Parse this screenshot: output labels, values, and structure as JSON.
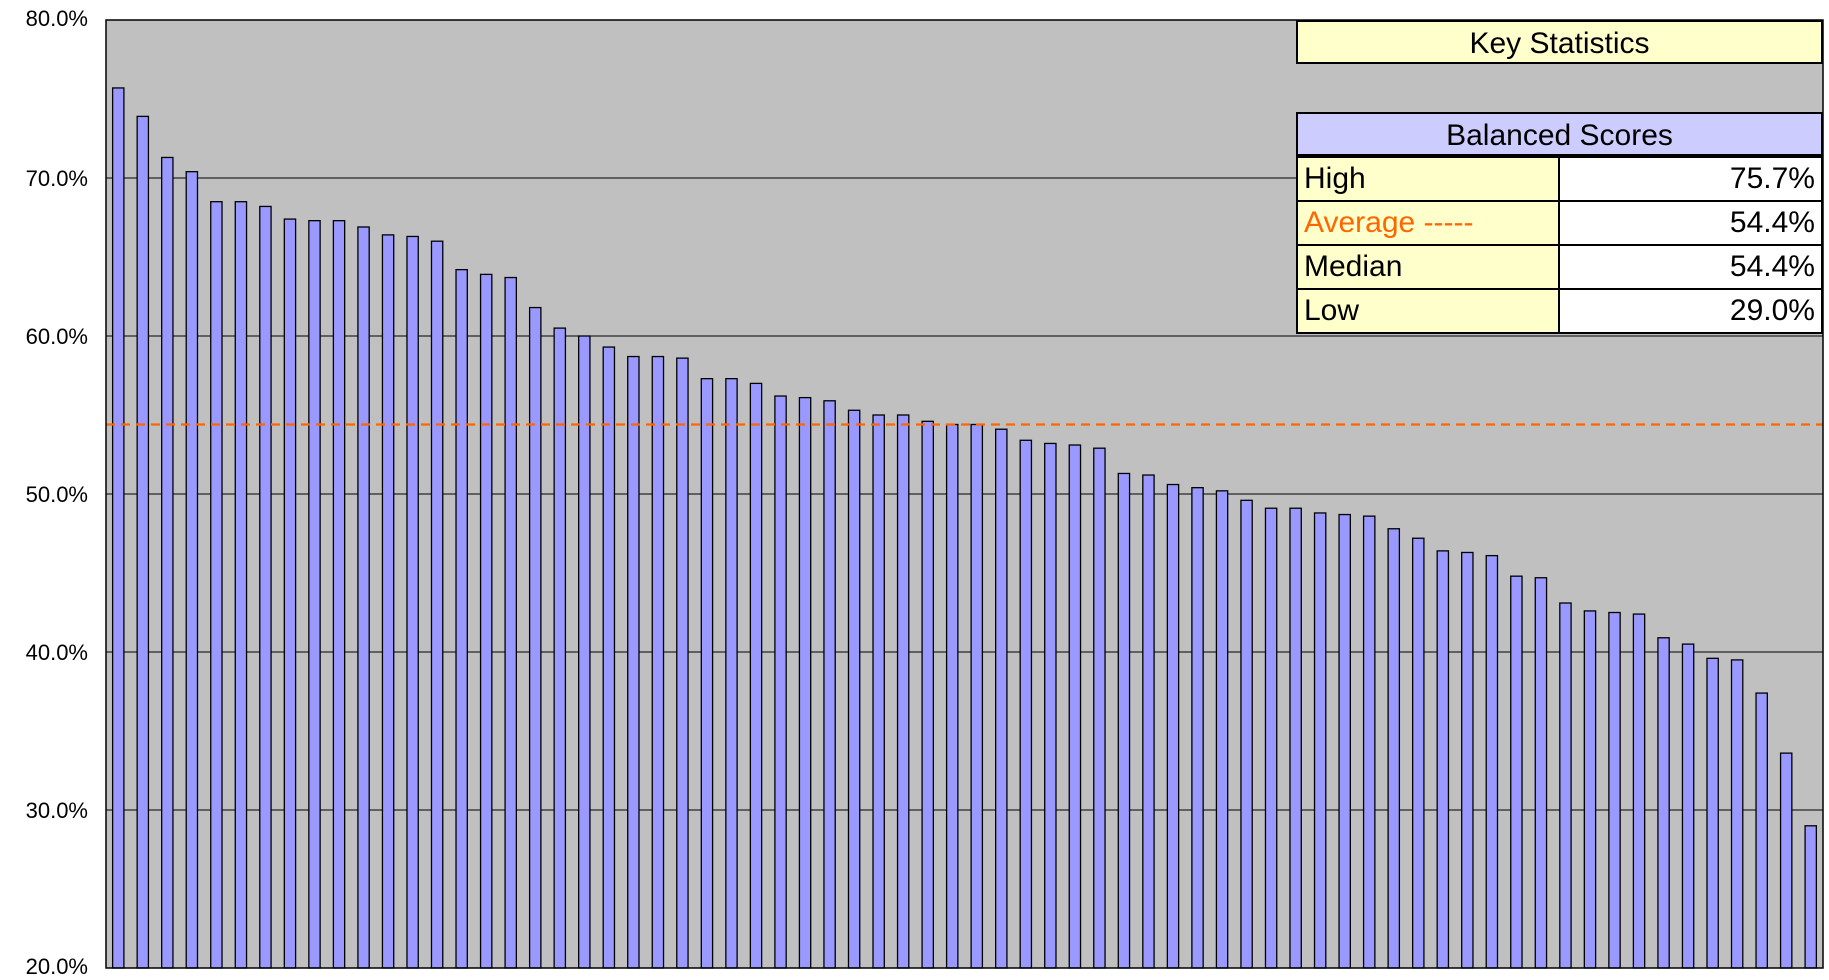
{
  "colors": {
    "plot_background": "#c0c0c0",
    "bar_fill": "#9999ff",
    "bar_stroke": "#000000",
    "gridline": "#000000",
    "average_line": "#ff6600",
    "header_yellow": "#ffffcc",
    "header_blue": "#ccccff",
    "row_label_fill": "#ffffcc",
    "average_label_text": "#ff6600"
  },
  "chart_data": {
    "type": "bar",
    "title": "",
    "xlabel": "",
    "ylabel": "",
    "ylim": [
      20,
      80
    ],
    "yticks": [
      20,
      30,
      40,
      50,
      60,
      70,
      80
    ],
    "ytick_labels": [
      "20.0%",
      "30.0%",
      "40.0%",
      "50.0%",
      "60.0%",
      "70.0%",
      "80.0%"
    ],
    "grid": true,
    "reference_line": {
      "value": 54.4,
      "style": "dashed"
    },
    "values": [
      75.7,
      73.9,
      71.3,
      70.4,
      68.5,
      68.5,
      68.2,
      67.4,
      67.3,
      67.3,
      66.9,
      66.4,
      66.3,
      66.0,
      64.2,
      63.9,
      63.7,
      61.8,
      60.5,
      60.0,
      59.3,
      58.7,
      58.7,
      58.6,
      57.3,
      57.3,
      57.0,
      56.2,
      56.1,
      55.9,
      55.3,
      55.0,
      55.0,
      54.6,
      54.4,
      54.4,
      54.1,
      53.4,
      53.2,
      53.1,
      52.9,
      51.3,
      51.2,
      50.6,
      50.4,
      50.2,
      49.6,
      49.1,
      49.1,
      48.8,
      48.7,
      48.6,
      47.8,
      47.2,
      46.4,
      46.3,
      46.1,
      44.8,
      44.7,
      43.1,
      42.6,
      42.5,
      42.4,
      40.9,
      40.5,
      39.6,
      39.5,
      37.4,
      33.6,
      29.0
    ]
  },
  "key_statistics": {
    "title": "Key Statistics",
    "section_title": "Balanced Scores",
    "rows": [
      {
        "label": "High",
        "value": "75.7%"
      },
      {
        "label": "Average -----",
        "value": "54.4%"
      },
      {
        "label": "Median",
        "value": "54.4%"
      },
      {
        "label": "Low",
        "value": "29.0%"
      }
    ]
  }
}
